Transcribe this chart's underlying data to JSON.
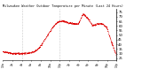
{
  "title": "Milwaukee Weather Outdoor Temperature per Minute (Last 24 Hours)",
  "ylabel_values": [
    75,
    70,
    65,
    60,
    55,
    50,
    45,
    40,
    35,
    30,
    25
  ],
  "ylim": [
    23,
    78
  ],
  "xlim": [
    0,
    1440
  ],
  "background_color": "#ffffff",
  "line_color": "#dd0000",
  "grid_color": "#999999",
  "n_points": 1440,
  "temp_profile_x": [
    0,
    60,
    120,
    180,
    240,
    300,
    360,
    420,
    480,
    540,
    600,
    660,
    720,
    780,
    840,
    900,
    960,
    1020,
    1080,
    1140,
    1200,
    1260,
    1320,
    1380,
    1440
  ],
  "temp_profile_y": [
    32,
    31,
    30,
    30,
    30,
    30,
    31,
    33,
    38,
    46,
    54,
    61,
    65,
    65,
    63,
    62,
    62,
    73,
    68,
    60,
    62,
    62,
    58,
    42,
    28
  ],
  "vline_positions": [
    240,
    720
  ],
  "xtick_spacing": 120,
  "noise_std": 0.5
}
